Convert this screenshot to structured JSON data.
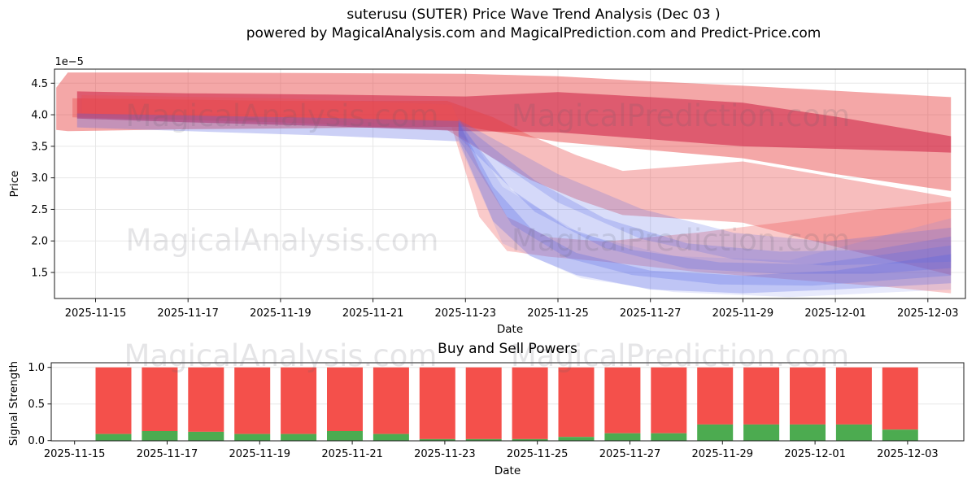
{
  "figure": {
    "title_line1": "suterusu (SUTER) Price Wave Trend Analysis (Dec 03 )",
    "title_line2": "powered by MagicalAnalysis.com and MagicalPrediction.com and Predict-Price.com"
  },
  "watermarks": {
    "left_text": "MagicalAnalysis.com",
    "right_text": "MagicalPrediction.com"
  },
  "chart_data": [
    {
      "type": "area",
      "title": "",
      "xlabel": "Date",
      "ylabel": "Price",
      "y_offset_label": "1e−5",
      "x_unit": "days since 2025-11-14",
      "x_tick_days": [
        1,
        3,
        5,
        7,
        9,
        11,
        13,
        15,
        17,
        19
      ],
      "x_tick_labels": [
        "2025-11-15",
        "2025-11-17",
        "2025-11-19",
        "2025-11-21",
        "2025-11-23",
        "2025-11-25",
        "2025-11-27",
        "2025-11-29",
        "2025-12-01",
        "2025-12-03"
      ],
      "y_ticks": [
        4.5,
        4.0,
        3.5,
        3.0,
        2.5,
        2.0,
        1.5
      ],
      "y_tick_labels": [
        "4.5",
        "4.0",
        "3.5",
        "3.0",
        "2.5",
        "2.0",
        "1.5"
      ],
      "ylim": [
        1.09,
        4.72
      ],
      "grid": true,
      "legend": "none",
      "bands_note": "each band point is [day, top_value, bottom_value] in 1e-5 units",
      "bands": [
        {
          "name": "red-upper-band",
          "color": "rgba(229,45,45,0.42)",
          "points": [
            [
              0.15,
              4.43,
              3.76
            ],
            [
              0.4,
              4.67,
              3.74
            ],
            [
              3,
              4.67,
              3.77
            ],
            [
              6,
              4.66,
              3.79
            ],
            [
              9,
              4.65,
              3.81
            ],
            [
              11,
              4.61,
              3.57
            ],
            [
              13,
              4.53,
              3.44
            ],
            [
              15,
              4.46,
              3.31
            ],
            [
              17,
              4.38,
              3.06
            ],
            [
              19.5,
              4.28,
              2.79
            ]
          ]
        },
        {
          "name": "red-core-band",
          "color": "rgba(200,15,55,0.50)",
          "points": [
            [
              0.6,
              4.37,
              3.94
            ],
            [
              3,
              4.34,
              3.88
            ],
            [
              6,
              4.32,
              3.82
            ],
            [
              9,
              4.29,
              3.74
            ],
            [
              11,
              4.36,
              3.72
            ],
            [
              13,
              4.28,
              3.61
            ],
            [
              15,
              4.19,
              3.5
            ],
            [
              17,
              3.97,
              3.46
            ],
            [
              19.5,
              3.66,
              3.4
            ]
          ]
        },
        {
          "name": "red-mid-band",
          "color": "rgba(232,55,55,0.33)",
          "points": [
            [
              0.5,
              4.26,
              3.96
            ],
            [
              5,
              4.22,
              3.88
            ],
            [
              8.6,
              4.22,
              3.76
            ],
            [
              9.6,
              3.96,
              3.31
            ],
            [
              10.4,
              3.67,
              2.97
            ],
            [
              11.4,
              3.36,
              2.66
            ],
            [
              12.4,
              3.11,
              2.41
            ],
            [
              15,
              3.26,
              2.29
            ],
            [
              17,
              3.01,
              1.91
            ],
            [
              19.5,
              2.69,
              1.46
            ]
          ]
        },
        {
          "name": "red-lower-band",
          "color": "rgba(238,80,80,0.30)",
          "points": [
            [
              0.7,
              4.31,
              4.02
            ],
            [
              5,
              4.26,
              3.94
            ],
            [
              8.7,
              4.16,
              3.81
            ],
            [
              9.3,
              3.15,
              2.38
            ],
            [
              9.9,
              2.38,
              1.84
            ],
            [
              10.8,
              2.06,
              1.75
            ],
            [
              12,
              1.99,
              1.67
            ],
            [
              14,
              2.13,
              1.51
            ],
            [
              16,
              2.31,
              1.39
            ],
            [
              18,
              2.51,
              1.28
            ],
            [
              19.5,
              2.63,
              1.17
            ]
          ]
        },
        {
          "name": "blue-history-stripe",
          "color": "rgba(85,100,225,0.30)",
          "points": [
            [
              0.6,
              4.02,
              3.8
            ],
            [
              3,
              3.99,
              3.74
            ],
            [
              6,
              3.95,
              3.67
            ],
            [
              8.85,
              3.9,
              3.58
            ]
          ]
        },
        {
          "name": "blue-fan-band-1",
          "color": "rgba(80,98,228,0.28)",
          "points": [
            [
              8.85,
              3.88,
              3.6
            ],
            [
              9.6,
              2.86,
              2.31
            ],
            [
              10.4,
              2.21,
              1.76
            ],
            [
              11.4,
              1.81,
              1.46
            ],
            [
              13,
              1.53,
              1.23
            ],
            [
              15,
              1.45,
              1.17
            ],
            [
              17,
              1.53,
              1.23
            ],
            [
              19.5,
              1.79,
              1.33
            ]
          ]
        },
        {
          "name": "blue-fan-band-2",
          "color": "rgba(80,98,228,0.25)",
          "points": [
            [
              8.85,
              3.88,
              3.62
            ],
            [
              10,
              2.81,
              2.26
            ],
            [
              11.2,
              2.21,
              1.73
            ],
            [
              12.6,
              1.86,
              1.46
            ],
            [
              14.5,
              1.66,
              1.31
            ],
            [
              16.5,
              1.63,
              1.29
            ],
            [
              19.5,
              1.93,
              1.45
            ]
          ]
        },
        {
          "name": "blue-fan-band-3",
          "color": "rgba(80,98,228,0.24)",
          "points": [
            [
              8.85,
              3.9,
              3.65
            ],
            [
              10.5,
              2.96,
              2.46
            ],
            [
              12,
              2.36,
              1.89
            ],
            [
              13.8,
              1.96,
              1.56
            ],
            [
              15.8,
              1.83,
              1.48
            ],
            [
              17.8,
              1.86,
              1.48
            ],
            [
              19.5,
              2.07,
              1.57
            ]
          ]
        },
        {
          "name": "blue-fan-band-4",
          "color": "rgba(80,98,228,0.22)",
          "points": [
            [
              8.85,
              3.92,
              3.68
            ],
            [
              11,
              3.06,
              2.61
            ],
            [
              12.8,
              2.51,
              2.03
            ],
            [
              14.8,
              2.13,
              1.71
            ],
            [
              16.8,
              1.99,
              1.61
            ],
            [
              19.5,
              2.21,
              1.67
            ]
          ]
        },
        {
          "name": "blue-fan-envelope",
          "color": "rgba(110,125,235,0.16)",
          "points": [
            [
              8.85,
              3.94,
              3.55
            ],
            [
              9.8,
              2.86,
              1.96
            ],
            [
              11.5,
              2.11,
              1.41
            ],
            [
              13.5,
              1.76,
              1.19
            ],
            [
              16,
              1.69,
              1.11
            ],
            [
              19.5,
              2.36,
              1.23
            ]
          ]
        }
      ]
    },
    {
      "type": "bar",
      "title": "Buy and Sell Powers",
      "xlabel": "Date",
      "ylabel": "Signal Strength",
      "stacked": true,
      "categories": [
        "2025-11-16",
        "2025-11-17",
        "2025-11-18",
        "2025-11-19",
        "2025-11-20",
        "2025-11-21",
        "2025-11-22",
        "2025-11-23",
        "2025-11-24",
        "2025-11-25",
        "2025-11-26",
        "2025-11-27",
        "2025-11-28",
        "2025-11-29",
        "2025-11-30",
        "2025-12-01",
        "2025-12-02",
        "2025-12-03"
      ],
      "series": [
        {
          "name": "buy-power",
          "color": "#4cab50",
          "values": [
            0.09,
            0.13,
            0.12,
            0.09,
            0.09,
            0.13,
            0.09,
            0.02,
            0.02,
            0.02,
            0.05,
            0.1,
            0.1,
            0.22,
            0.22,
            0.22,
            0.22,
            0.15
          ]
        },
        {
          "name": "sell-power",
          "color": "#f4504b",
          "values": [
            0.91,
            0.87,
            0.88,
            0.91,
            0.91,
            0.87,
            0.91,
            0.98,
            0.98,
            0.98,
            0.95,
            0.9,
            0.9,
            0.78,
            0.78,
            0.78,
            0.78,
            0.85
          ]
        }
      ],
      "x_tick_days": [
        1,
        3,
        5,
        7,
        9,
        11,
        13,
        15,
        17,
        19
      ],
      "x_tick_labels": [
        "2025-11-15",
        "2025-11-17",
        "2025-11-19",
        "2025-11-21",
        "2025-11-23",
        "2025-11-25",
        "2025-11-27",
        "2025-11-29",
        "2025-12-01",
        "2025-12-03"
      ],
      "y_ticks": [
        0.0,
        0.5,
        1.0
      ],
      "y_tick_labels": [
        "0.0",
        "0.5",
        "1.0"
      ],
      "ylim": [
        0,
        1.06
      ],
      "grid": true,
      "legend": "none"
    }
  ],
  "style": {
    "grid_color": "#e7e7e7",
    "spine_color": "#1a1a1a",
    "text_color": "#000000"
  }
}
